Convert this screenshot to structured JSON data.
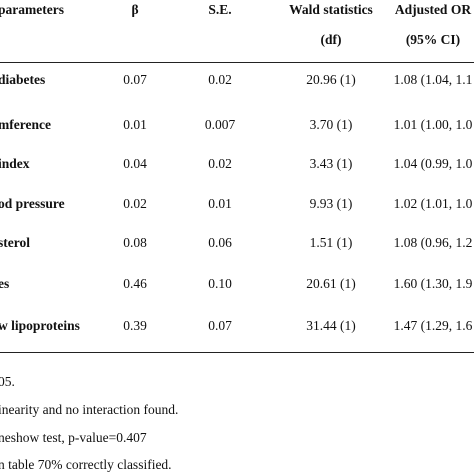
{
  "table": {
    "header": [
      [
        "parameters",
        "β",
        "S.E.",
        "Wald statistics",
        "Adjusted OR"
      ],
      [
        "",
        "",
        "",
        "(df)",
        "(95% CI)"
      ]
    ],
    "rows": [
      [
        "diabetes",
        "0.07",
        "0.02",
        "20.96 (1)",
        "1.08 (1.04, 1.1"
      ],
      [
        "mference",
        "0.01",
        "0.007",
        "3.70 (1)",
        "1.01 (1.00, 1.0"
      ],
      [
        "index",
        "0.04",
        "0.02",
        "3.43 (1)",
        "1.04 (0.99, 1.0"
      ],
      [
        "od pressure",
        "0.02",
        "0.01",
        "9.93 (1)",
        "1.02 (1.01, 1.0"
      ],
      [
        "sterol",
        "0.08",
        "0.06",
        "1.51 (1)",
        "1.08 (0.96, 1.2"
      ],
      [
        "es",
        "0.46",
        "0.10",
        "20.61 (1)",
        "1.60 (1.30, 1.9"
      ],
      [
        "w lipoproteins",
        "0.39",
        "0.07",
        "31.44 (1)",
        "1.47 (1.29, 1.6"
      ]
    ]
  },
  "notes": [
    "05.",
    "inearity and no interaction found.",
    "neshow test, p-value=0.407",
    "n table 70% correctly classified."
  ]
}
